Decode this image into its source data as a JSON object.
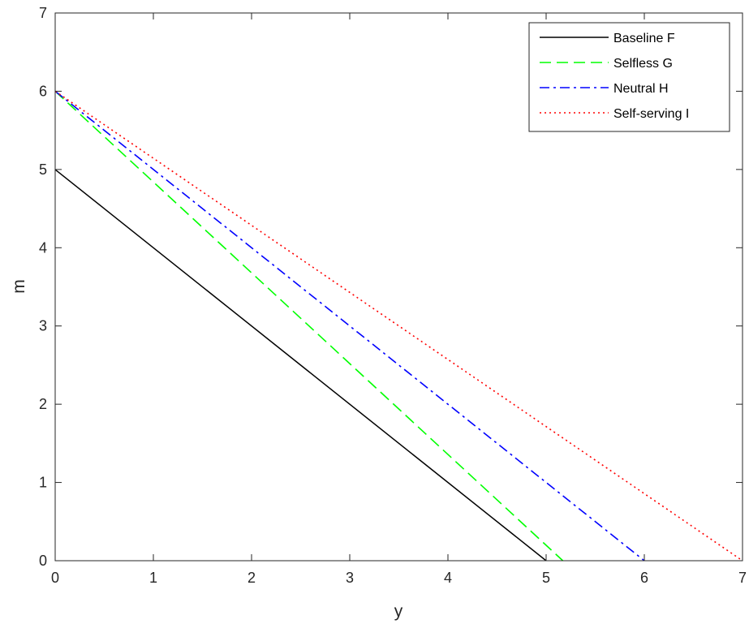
{
  "chart_data": {
    "type": "line",
    "xlabel": "y",
    "ylabel": "m",
    "xlim": [
      0,
      7
    ],
    "ylim": [
      0,
      7
    ],
    "xticks": [
      "0",
      "1",
      "2",
      "3",
      "4",
      "5",
      "6",
      "7"
    ],
    "yticks": [
      "0",
      "1",
      "2",
      "3",
      "4",
      "5",
      "6",
      "7"
    ],
    "grid": false,
    "legend_position": "top-right",
    "series": [
      {
        "name": "Baseline F",
        "x": [
          0,
          5
        ],
        "y": [
          5,
          0
        ],
        "color": "#000000",
        "style": "solid"
      },
      {
        "name": "Selfless G",
        "x": [
          0,
          5.17
        ],
        "y": [
          6,
          0
        ],
        "color": "#00ff00",
        "style": "dashed"
      },
      {
        "name": "Neutral H",
        "x": [
          0,
          6
        ],
        "y": [
          6,
          0
        ],
        "color": "#0000ff",
        "style": "dashdot"
      },
      {
        "name": "Self-serving I",
        "x": [
          0,
          7
        ],
        "y": [
          6,
          0
        ],
        "color": "#ff0000",
        "style": "dotted"
      }
    ]
  }
}
